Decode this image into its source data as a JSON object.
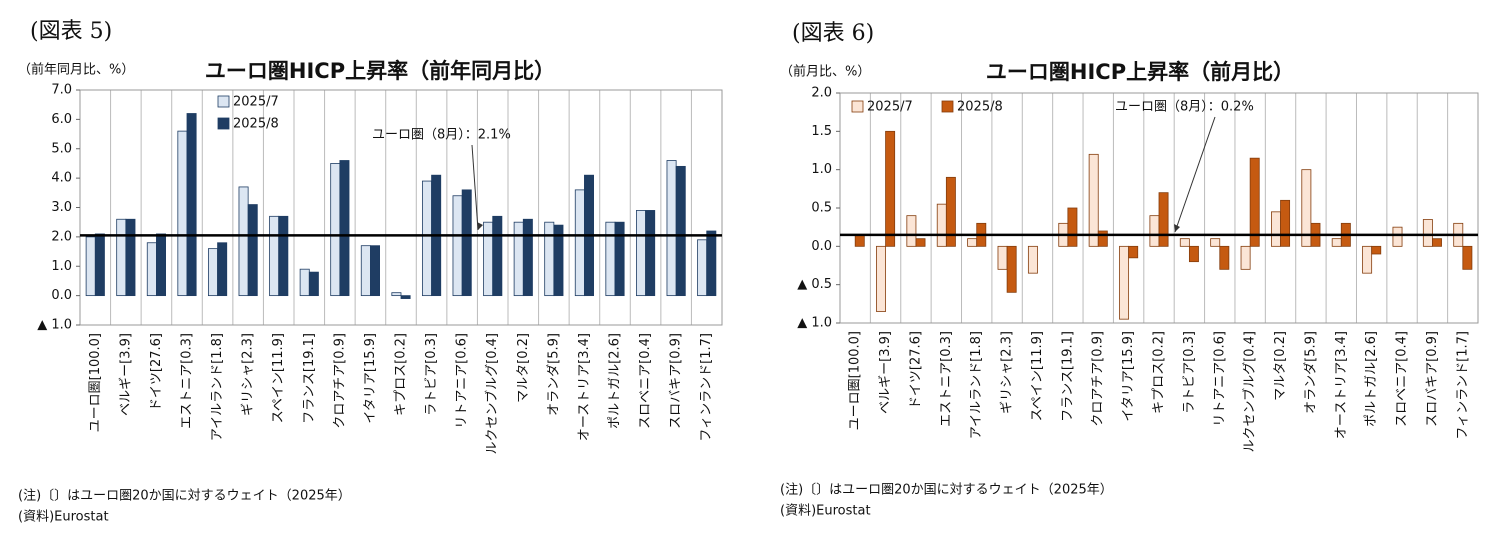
{
  "chart_data": [
    {
      "type": "bar",
      "figure_label": "(図表 5)",
      "title": "ユーロ圏HICP上昇率（前年同月比）",
      "y_label": "（前年同月比、%）",
      "categories": [
        "ユーロ圏[100.0]",
        "ベルギー[3.9]",
        "ドイツ[27.6]",
        "エストニア[0.3]",
        "アイルランド[1.8]",
        "ギリシャ[2.3]",
        "スペイン[11.9]",
        "フランス[19.1]",
        "クロアチア[0.9]",
        "イタリア[15.9]",
        "キプロス[0.2]",
        "ラトビア[0.3]",
        "リトアニア[0.6]",
        "ルクセンブルグ[0.4]",
        "マルタ[0.2]",
        "オランダ[5.9]",
        "オーストリア[3.4]",
        "ポルトガル[2.6]",
        "スロベニア[0.4]",
        "スロバキア[0.9]",
        "フィンランド[1.7]"
      ],
      "series": [
        {
          "name": "2025/7",
          "color": "#dce6f2",
          "edgecolor": "#1f3d63",
          "values": [
            2.0,
            2.6,
            1.8,
            5.6,
            1.6,
            3.7,
            2.7,
            0.9,
            4.5,
            1.7,
            0.1,
            3.9,
            3.4,
            2.5,
            2.5,
            2.5,
            3.6,
            2.5,
            2.9,
            4.6,
            1.9
          ]
        },
        {
          "name": "2025/8",
          "color": "#1f3d63",
          "edgecolor": "#1f3d63",
          "values": [
            2.1,
            2.6,
            2.1,
            6.2,
            1.8,
            3.1,
            2.7,
            0.8,
            4.6,
            1.7,
            -0.1,
            4.1,
            3.6,
            2.7,
            2.6,
            2.4,
            4.1,
            2.5,
            2.9,
            4.4,
            2.2
          ]
        }
      ],
      "ylim": [
        -1,
        7
      ],
      "yticks": [
        {
          "value": -1,
          "label": "▲ 1.0"
        },
        {
          "value": 0,
          "label": "0.0"
        },
        {
          "value": 1,
          "label": "1.0"
        },
        {
          "value": 2,
          "label": "2.0"
        },
        {
          "value": 3,
          "label": "3.0"
        },
        {
          "value": 4,
          "label": "4.0"
        },
        {
          "value": 5,
          "label": "5.0"
        },
        {
          "value": 6,
          "label": "6.0"
        },
        {
          "value": 7,
          "label": "7.0"
        }
      ],
      "hline": 2.05,
      "annotation": "ユーロ圏（8月）：2.1%",
      "legend": "upper left",
      "notes": [
        "(注)〔〕はユーロ圏20か国に対するウェイト（2025年）",
        "(資料)Eurostat"
      ]
    },
    {
      "type": "bar",
      "figure_label": "(図表 6)",
      "title": "ユーロ圏HICP上昇率（前月比）",
      "y_label": "（前月比、%）",
      "categories": [
        "ユーロ圏[100.0]",
        "ベルギー[3.9]",
        "ドイツ[27.6]",
        "エストニア[0.3]",
        "アイルランド[1.8]",
        "ギリシャ[2.3]",
        "スペイン[11.9]",
        "フランス[19.1]",
        "クロアチア[0.9]",
        "イタリア[15.9]",
        "キプロス[0.2]",
        "ラトビア[0.3]",
        "リトアニア[0.6]",
        "ルクセンブルグ[0.4]",
        "マルタ[0.2]",
        "オランダ[5.9]",
        "オーストリア[3.4]",
        "ポルトガル[2.6]",
        "スロベニア[0.4]",
        "スロバキア[0.9]",
        "フィンランド[1.7]"
      ],
      "series": [
        {
          "name": "2025/7",
          "color": "#fbe5d6",
          "edgecolor": "#843c0c",
          "values": [
            0.0,
            -0.85,
            0.4,
            0.55,
            0.1,
            -0.3,
            -0.35,
            0.3,
            1.2,
            -0.95,
            0.4,
            0.1,
            0.1,
            -0.3,
            0.45,
            1.0,
            0.1,
            -0.35,
            0.25,
            0.35,
            0.3
          ]
        },
        {
          "name": "2025/8",
          "color": "#c55a11",
          "edgecolor": "#843c0c",
          "values": [
            0.15,
            1.5,
            0.1,
            0.9,
            0.3,
            -0.6,
            0.0,
            0.5,
            0.2,
            -0.15,
            0.7,
            -0.2,
            -0.3,
            1.15,
            0.6,
            0.3,
            0.3,
            -0.1,
            0.0,
            0.1,
            -0.3
          ]
        }
      ],
      "ylim": [
        -1,
        2
      ],
      "yticks": [
        {
          "value": -1,
          "label": "▲ 1.0"
        },
        {
          "value": -0.5,
          "label": "▲ 0.5"
        },
        {
          "value": 0,
          "label": "0.0"
        },
        {
          "value": 0.5,
          "label": "0.5"
        },
        {
          "value": 1,
          "label": "1.0"
        },
        {
          "value": 1.5,
          "label": "1.5"
        },
        {
          "value": 2,
          "label": "2.0"
        }
      ],
      "hline": 0.15,
      "annotation": "ユーロ圏（8月）：0.2%",
      "legend": "upper left",
      "notes": [
        "(注)〔〕はユーロ圏20か国に対するウェイト（2025年）",
        "(資料)Eurostat"
      ]
    }
  ]
}
